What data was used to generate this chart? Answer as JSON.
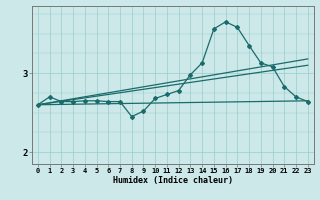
{
  "title": "",
  "xlabel": "Humidex (Indice chaleur)",
  "bg_color": "#cce8e8",
  "line_color": "#1a6b6b",
  "grid_color": "#99cccc",
  "xlim": [
    -0.5,
    23.5
  ],
  "ylim": [
    1.85,
    3.85
  ],
  "yticks": [
    2,
    3
  ],
  "xticks": [
    0,
    1,
    2,
    3,
    4,
    5,
    6,
    7,
    8,
    9,
    10,
    11,
    12,
    13,
    14,
    15,
    16,
    17,
    18,
    19,
    20,
    21,
    22,
    23
  ],
  "main_line": [
    [
      0,
      2.6
    ],
    [
      1,
      2.7
    ],
    [
      2,
      2.64
    ],
    [
      3,
      2.64
    ],
    [
      4,
      2.65
    ],
    [
      5,
      2.65
    ],
    [
      6,
      2.64
    ],
    [
      7,
      2.64
    ],
    [
      8,
      2.45
    ],
    [
      9,
      2.52
    ],
    [
      10,
      2.68
    ],
    [
      11,
      2.73
    ],
    [
      12,
      2.78
    ],
    [
      13,
      2.98
    ],
    [
      14,
      3.13
    ],
    [
      15,
      3.56
    ],
    [
      16,
      3.65
    ],
    [
      17,
      3.58
    ],
    [
      18,
      3.35
    ],
    [
      19,
      3.13
    ],
    [
      20,
      3.08
    ],
    [
      21,
      2.83
    ],
    [
      22,
      2.7
    ],
    [
      23,
      2.64
    ]
  ],
  "trend_line1": [
    [
      0,
      2.6
    ],
    [
      23,
      2.65
    ]
  ],
  "trend_line2": [
    [
      0,
      2.6
    ],
    [
      23,
      3.18
    ]
  ],
  "trend_line3": [
    [
      0,
      2.6
    ],
    [
      23,
      3.1
    ]
  ]
}
